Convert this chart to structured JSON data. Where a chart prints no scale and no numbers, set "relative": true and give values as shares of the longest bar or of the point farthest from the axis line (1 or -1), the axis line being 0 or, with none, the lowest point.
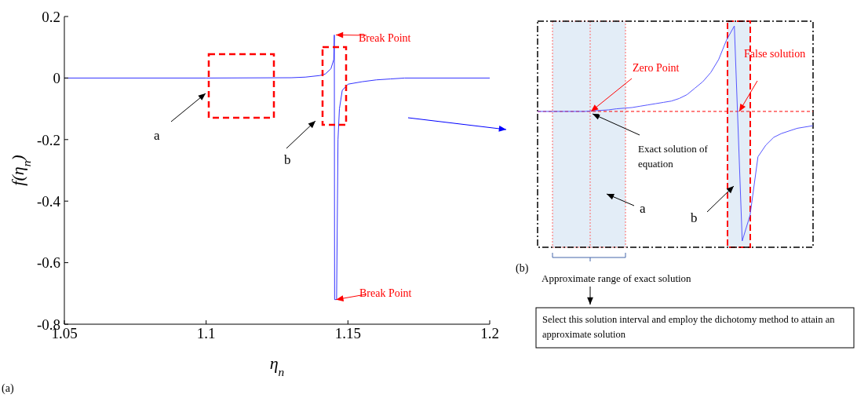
{
  "chart_data": [
    {
      "type": "line",
      "xlabel": "η$_{n}$",
      "ylabel": "f(η$_{n}$)",
      "color": "#3333ff",
      "x": [
        1.05,
        1.1,
        1.13,
        1.135,
        1.14,
        1.142,
        1.144,
        1.145,
        1.1452,
        1.1453,
        1.146,
        1.1465,
        1.147,
        1.148,
        1.15,
        1.155,
        1.16,
        1.165,
        1.17,
        1.2
      ],
      "values": [
        0,
        0,
        0.001,
        0.003,
        0.008,
        0.013,
        0.03,
        0.06,
        0.14,
        -0.72,
        -0.72,
        -0.2,
        -0.1,
        -0.04,
        -0.02,
        -0.012,
        -0.006,
        -0.003,
        0,
        0
      ],
      "xlim": [
        1.05,
        1.2
      ],
      "ylim": [
        -0.8,
        0.2
      ],
      "xticks": [
        1.05,
        1.1,
        1.15,
        1.2
      ],
      "yticks": [
        -0.8,
        -0.6,
        -0.4,
        -0.2,
        0,
        0.2
      ],
      "annotations": [
        {
          "text": "Break Point",
          "x": 1.1452,
          "y": 0.14
        },
        {
          "text": "Break Point",
          "x": 1.1453,
          "y": -0.72
        },
        "a",
        "b",
        "(a)"
      ]
    },
    {
      "type": "line",
      "relative": true,
      "color": "#5555ff",
      "categories": [
        null,
        null,
        null,
        null,
        null,
        null,
        null,
        null,
        null,
        null,
        null,
        null,
        null,
        null,
        null,
        null,
        null,
        null,
        null,
        null,
        null,
        null,
        null,
        null,
        null,
        null,
        null,
        null,
        null,
        null,
        null,
        null,
        null,
        null,
        null,
        null
      ],
      "values": [
        0,
        0,
        0,
        0,
        0,
        0,
        0,
        0.005,
        0.008,
        0.012,
        0.02,
        0.025,
        0.03,
        0.04,
        0.05,
        0.06,
        0.07,
        0.08,
        0.1,
        0.13,
        0.18,
        0.23,
        0.3,
        0.4,
        0.55,
        0.66,
        -1,
        -0.8,
        -0.35,
        -0.26,
        -0.2,
        -0.17,
        -0.15,
        -0.13,
        -0.12,
        -0.11
      ],
      "ref_lines": [
        {
          "axis": "y",
          "value": 0,
          "color": "#ff0000",
          "line_style": "dashed"
        }
      ],
      "annotations": [
        "Zero Point",
        "False solution",
        "Exact solution of equation",
        "a",
        "b",
        "(b)",
        "Approximate range of exact solution",
        "Select this solution interval and employ the dichotomy method to attain an approximate solution"
      ]
    }
  ]
}
